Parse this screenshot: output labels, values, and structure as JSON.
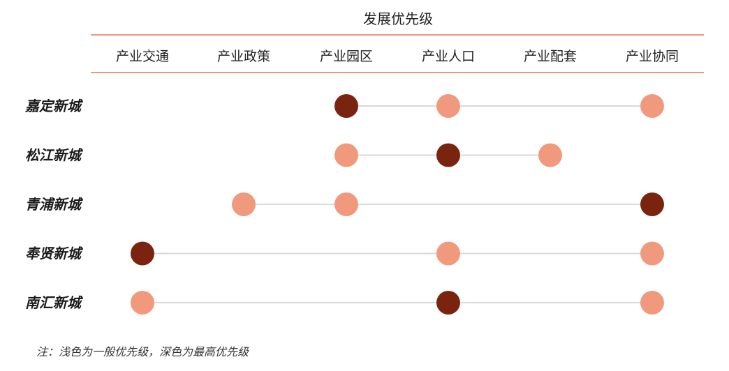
{
  "chart_data": {
    "type": "scatter",
    "title": "发展优先级",
    "columns": [
      "产业交通",
      "产业政策",
      "产业园区",
      "产业人口",
      "产业配套",
      "产业协同"
    ],
    "rows": [
      {
        "name": "嘉定新城",
        "points": [
          {
            "column": "产业园区",
            "level": "最高"
          },
          {
            "column": "产业人口",
            "level": "一般"
          },
          {
            "column": "产业协同",
            "level": "一般"
          }
        ]
      },
      {
        "name": "松江新城",
        "points": [
          {
            "column": "产业园区",
            "level": "一般"
          },
          {
            "column": "产业人口",
            "level": "最高"
          },
          {
            "column": "产业配套",
            "level": "一般"
          }
        ]
      },
      {
        "name": "青浦新城",
        "points": [
          {
            "column": "产业政策",
            "level": "一般"
          },
          {
            "column": "产业园区",
            "level": "一般"
          },
          {
            "column": "产业协同",
            "level": "最高"
          }
        ]
      },
      {
        "name": "奉贤新城",
        "points": [
          {
            "column": "产业交通",
            "level": "最高"
          },
          {
            "column": "产业人口",
            "level": "一般"
          },
          {
            "column": "产业协同",
            "level": "一般"
          }
        ]
      },
      {
        "name": "南汇新城",
        "points": [
          {
            "column": "产业交通",
            "level": "一般"
          },
          {
            "column": "产业人口",
            "level": "最高"
          },
          {
            "column": "产业协同",
            "level": "一般"
          }
        ]
      }
    ],
    "note": "注：浅色为一般优先级，深色为最高优先级",
    "colors": {
      "一般": "#f0997d",
      "最高": "#7a2410",
      "connector": "#d9d9d9",
      "rule": "#e8735a"
    }
  }
}
